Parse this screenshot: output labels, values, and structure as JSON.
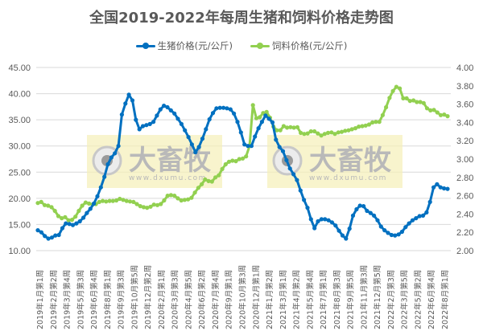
{
  "chart_data": {
    "type": "line",
    "title": "全国2019-2022年每周生猪和饲料价格走势图",
    "legend_position": "top",
    "grid": true,
    "y_left": {
      "label": "",
      "min": 10,
      "max": 45,
      "step": 5,
      "ticks": [
        "45.00",
        "40.00",
        "35.00",
        "30.00",
        "25.00",
        "20.00",
        "15.00",
        "10.00"
      ]
    },
    "y_right": {
      "label": "",
      "min": 2.0,
      "max": 4.0,
      "step": 0.2,
      "ticks": [
        "4.00",
        "3.80",
        "3.60",
        "3.40",
        "3.20",
        "3.00",
        "2.80",
        "2.60",
        "2.40",
        "2.20",
        "2.00"
      ]
    },
    "x_tick_labels": [
      "2019年1月第1周",
      "2019年2月第2周",
      "2019年3月第4周",
      "2019年5月第3周",
      "2019年6月第4周",
      "2019年8月第1周",
      "2019年9月第3周",
      "2019年10月第5周",
      "2019年12月第2周",
      "2020年2月第1周",
      "2020年3月第3周",
      "2020年4月第5周",
      "2020年6月第2周",
      "2020年7月第4周",
      "2020年9月第1周",
      "2020年10月第3周",
      "2020年12月第1周",
      "2021年1月第2周",
      "2021年3月第1周",
      "2021年4月第2周",
      "2021年5月第4周",
      "2021年7月第1周",
      "2021年8月第3周",
      "2021年9月第5周",
      "2021年11月第3周",
      "2021年12月第5周",
      "2022年2月第3周",
      "2022年3月第5周",
      "2022年5月第2周",
      "2022年6月第4周",
      "2022年8月第1周"
    ],
    "series": [
      {
        "name": "生猪价格(元/公斤)",
        "axis": "left",
        "color": "#0070C0",
        "values": [
          13.9,
          13.5,
          12.8,
          12.3,
          12.5,
          12.9,
          13.0,
          14.3,
          15.2,
          15.1,
          14.9,
          15.2,
          15.6,
          16.3,
          17.2,
          18.0,
          19.0,
          20.4,
          22.1,
          24.1,
          26.5,
          27.8,
          28.6,
          30.0,
          36.0,
          38.1,
          39.8,
          38.7,
          35.0,
          33.2,
          33.8,
          34.0,
          34.2,
          34.6,
          35.8,
          37.0,
          37.7,
          37.4,
          36.8,
          36.2,
          35.2,
          34.2,
          33.0,
          31.7,
          30.3,
          28.8,
          29.8,
          31.4,
          33.2,
          35.1,
          36.3,
          37.2,
          37.3,
          37.3,
          37.2,
          37.0,
          36.2,
          34.6,
          32.6,
          30.3,
          30.0,
          30.0,
          31.8,
          33.4,
          34.6,
          35.8,
          35.2,
          34.5,
          31.2,
          29.8,
          29.0,
          27.3,
          25.7,
          24.6,
          23.5,
          21.5,
          19.7,
          18.2,
          16.0,
          14.3,
          15.6,
          16.0,
          16.0,
          15.8,
          15.4,
          14.8,
          13.8,
          12.9,
          12.3,
          14.2,
          16.7,
          17.9,
          18.6,
          18.5,
          17.6,
          17.2,
          16.7,
          15.8,
          14.6,
          13.9,
          13.4,
          13.0,
          12.9,
          13.1,
          13.6,
          14.5,
          15.2,
          15.8,
          16.2,
          16.6,
          16.7,
          17.3,
          19.3,
          22.1,
          22.7,
          22.1,
          21.9,
          21.8
        ],
        "watermark_note": "partially obscured by dxumu watermark"
      },
      {
        "name": "饲料价格(元/公斤)",
        "axis": "left",
        "color": "#92D050",
        "values": [
          19.1,
          19.3,
          18.7,
          18.6,
          18.3,
          17.6,
          16.6,
          16.2,
          16.4,
          15.8,
          15.9,
          16.5,
          17.6,
          18.6,
          19.2,
          19.0,
          18.8,
          18.9,
          19.3,
          19.5,
          19.4,
          19.5,
          19.5,
          19.6,
          19.9,
          19.7,
          19.5,
          19.4,
          19.3,
          18.9,
          18.5,
          18.3,
          18.2,
          18.4,
          18.8,
          18.7,
          18.9,
          19.6,
          20.5,
          20.6,
          20.5,
          20.0,
          19.6,
          19.7,
          19.8,
          20.1,
          21.1,
          22.0,
          22.7,
          23.6,
          23.3,
          23.2,
          24.0,
          24.4,
          25.6,
          26.5,
          27.0,
          27.2,
          27.1,
          27.5,
          27.6,
          28.0,
          30.0,
          37.8,
          35.3,
          35.5,
          36.3,
          36.5,
          35.4,
          33.7,
          33.0,
          33.0,
          33.8,
          33.5,
          33.6,
          33.5,
          33.6,
          32.5,
          32.3,
          32.4,
          32.8,
          32.8,
          32.4,
          32.0,
          32.3,
          32.5,
          32.6,
          32.3,
          32.6,
          32.7,
          32.9,
          33.0,
          33.2,
          33.4,
          33.7,
          33.8,
          33.9,
          34.1,
          34.5,
          34.6,
          34.6,
          35.9,
          37.4,
          39.2,
          40.5,
          41.3,
          41.0,
          39.1,
          39.1,
          38.6,
          38.7,
          38.4,
          38.4,
          38.2,
          37.2,
          36.8,
          36.9,
          36.4,
          35.9,
          36.0,
          35.7
        ]
      }
    ]
  },
  "header": {
    "title": "全国2019-2022年每周生猪和饲料价格走势图"
  },
  "legend": {
    "items": [
      {
        "label": "生猪价格(元/公斤)",
        "color": "#0070C0"
      },
      {
        "label": "饲料价格(元/公斤)",
        "color": "#92D050"
      }
    ]
  },
  "watermark": {
    "brand": "大畜牧",
    "url": "www.dxumu.com"
  }
}
